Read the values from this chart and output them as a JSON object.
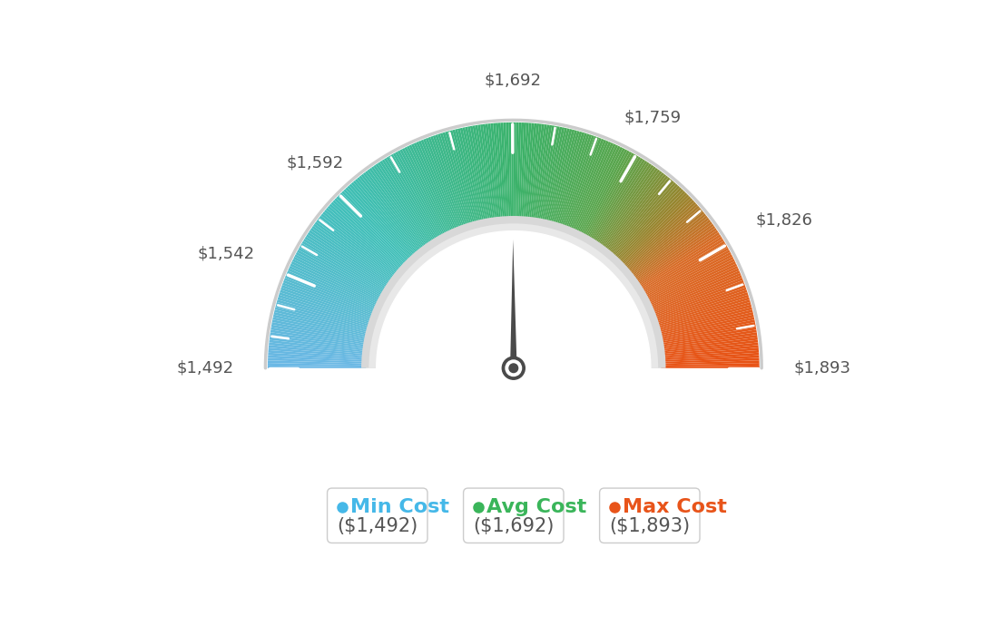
{
  "min_value": 1492,
  "max_value": 1893,
  "avg_value": 1692,
  "tick_labels": [
    "$1,492",
    "$1,542",
    "$1,592",
    "$1,692",
    "$1,759",
    "$1,826",
    "$1,893"
  ],
  "tick_values": [
    1492,
    1542,
    1592,
    1692,
    1759,
    1826,
    1893
  ],
  "legend_items": [
    {
      "label": "Min Cost",
      "value": "($1,492)",
      "color": "#45b8e8"
    },
    {
      "label": "Avg Cost",
      "value": "($1,692)",
      "color": "#3ab55a"
    },
    {
      "label": "Max Cost",
      "value": "($1,893)",
      "color": "#e8541a"
    }
  ],
  "bg_color": "#ffffff",
  "color_stops": [
    [
      0.0,
      [
        0.42,
        0.72,
        0.9
      ]
    ],
    [
      0.25,
      [
        0.25,
        0.75,
        0.72
      ]
    ],
    [
      0.5,
      [
        0.23,
        0.7,
        0.42
      ]
    ],
    [
      0.65,
      [
        0.35,
        0.65,
        0.3
      ]
    ],
    [
      0.75,
      [
        0.6,
        0.52,
        0.18
      ]
    ],
    [
      0.82,
      [
        0.85,
        0.42,
        0.15
      ]
    ],
    [
      1.0,
      [
        0.91,
        0.32,
        0.08
      ]
    ]
  ],
  "label_fontsize": 13,
  "legend_title_fontsize": 16,
  "legend_value_fontsize": 15
}
